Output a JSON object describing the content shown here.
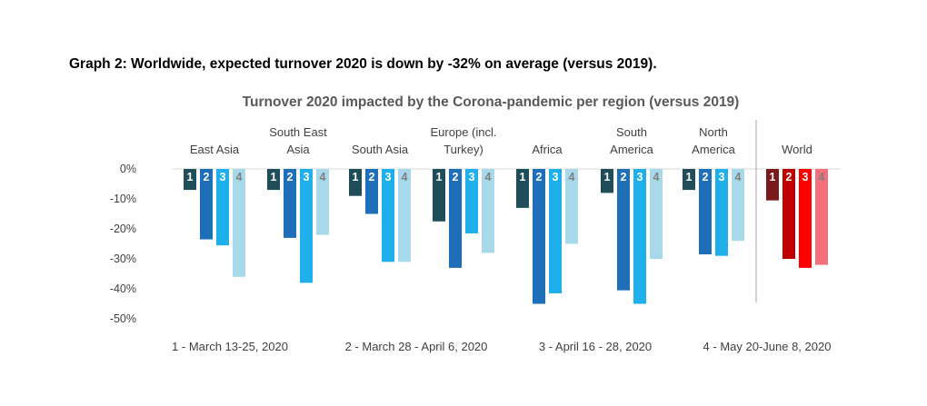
{
  "heading": "Graph 2: Worldwide, expected turnover 2020 is down by -32% on average (versus 2019).",
  "chart_data": {
    "type": "bar",
    "title": "Turnover 2020 impacted by the Corona-pandemic per region (versus 2019)",
    "ylim": [
      -50,
      0
    ],
    "yticks": [
      "0%",
      "-10%",
      "-20%",
      "-30%",
      "-40%",
      "-50%"
    ],
    "grid": false,
    "bar_labels": [
      "1",
      "2",
      "3",
      "4"
    ],
    "regions": [
      {
        "name": [
          "East Asia"
        ],
        "values": [
          -7,
          -23.5,
          -25.5,
          -36
        ]
      },
      {
        "name": [
          "South East",
          "Asia"
        ],
        "values": [
          -7,
          -23,
          -38,
          -22
        ]
      },
      {
        "name": [
          "South Asia"
        ],
        "values": [
          -9,
          -15,
          -31,
          -31
        ]
      },
      {
        "name": [
          "Europe (incl.",
          "Turkey)"
        ],
        "values": [
          -17.5,
          -33,
          -21.5,
          -28
        ]
      },
      {
        "name": [
          "Africa"
        ],
        "values": [
          -13,
          -45,
          -41.5,
          -25
        ]
      },
      {
        "name": [
          "South",
          "America"
        ],
        "values": [
          -8,
          -40.5,
          -45,
          -30
        ]
      },
      {
        "name": [
          "North",
          "America"
        ],
        "values": [
          -7,
          -28.5,
          -29,
          -24
        ]
      },
      {
        "name": [
          "World"
        ],
        "values": [
          -10.5,
          -30,
          -33,
          -32
        ]
      }
    ],
    "legend": [
      "1 - March 13-25, 2020",
      "2 - March 28 - April 6, 2020",
      "3 - April 16 - 28, 2020",
      "4 - May 20-June 8, 2020"
    ],
    "colors": {
      "regional": [
        "#1f4e5a",
        "#1f6fb8",
        "#1fb0ec",
        "#a8d9ea"
      ],
      "world": [
        "#7b1a1a",
        "#c00000",
        "#ff0000",
        "#f4707a"
      ],
      "label_text": [
        "#ffffff",
        "#ffffff",
        "#ffffff",
        "#7f7f7f"
      ]
    }
  }
}
